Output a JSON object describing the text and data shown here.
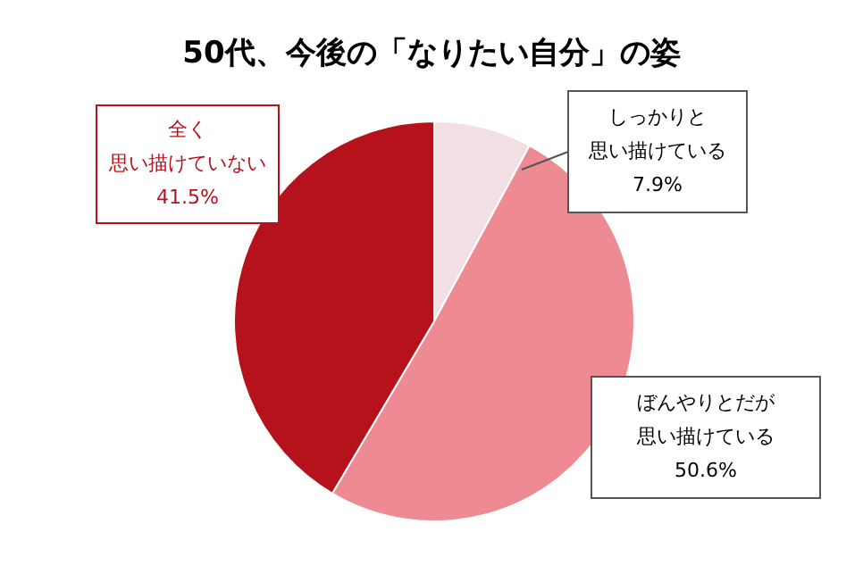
{
  "chart_data": {
    "type": "pie",
    "title": "50代、今後の「なりたい自分」の姿",
    "categories": [
      "しっかりと思い描けている",
      "ぼんやりとだが思い描けている",
      "全く思い描けていない"
    ],
    "values": [
      7.9,
      50.6,
      41.5
    ],
    "colors": [
      "#f2dfe3",
      "#ee8a92",
      "#b5121b"
    ],
    "value_labels": [
      "7.9%",
      "50.6%",
      "41.5%"
    ]
  }
}
